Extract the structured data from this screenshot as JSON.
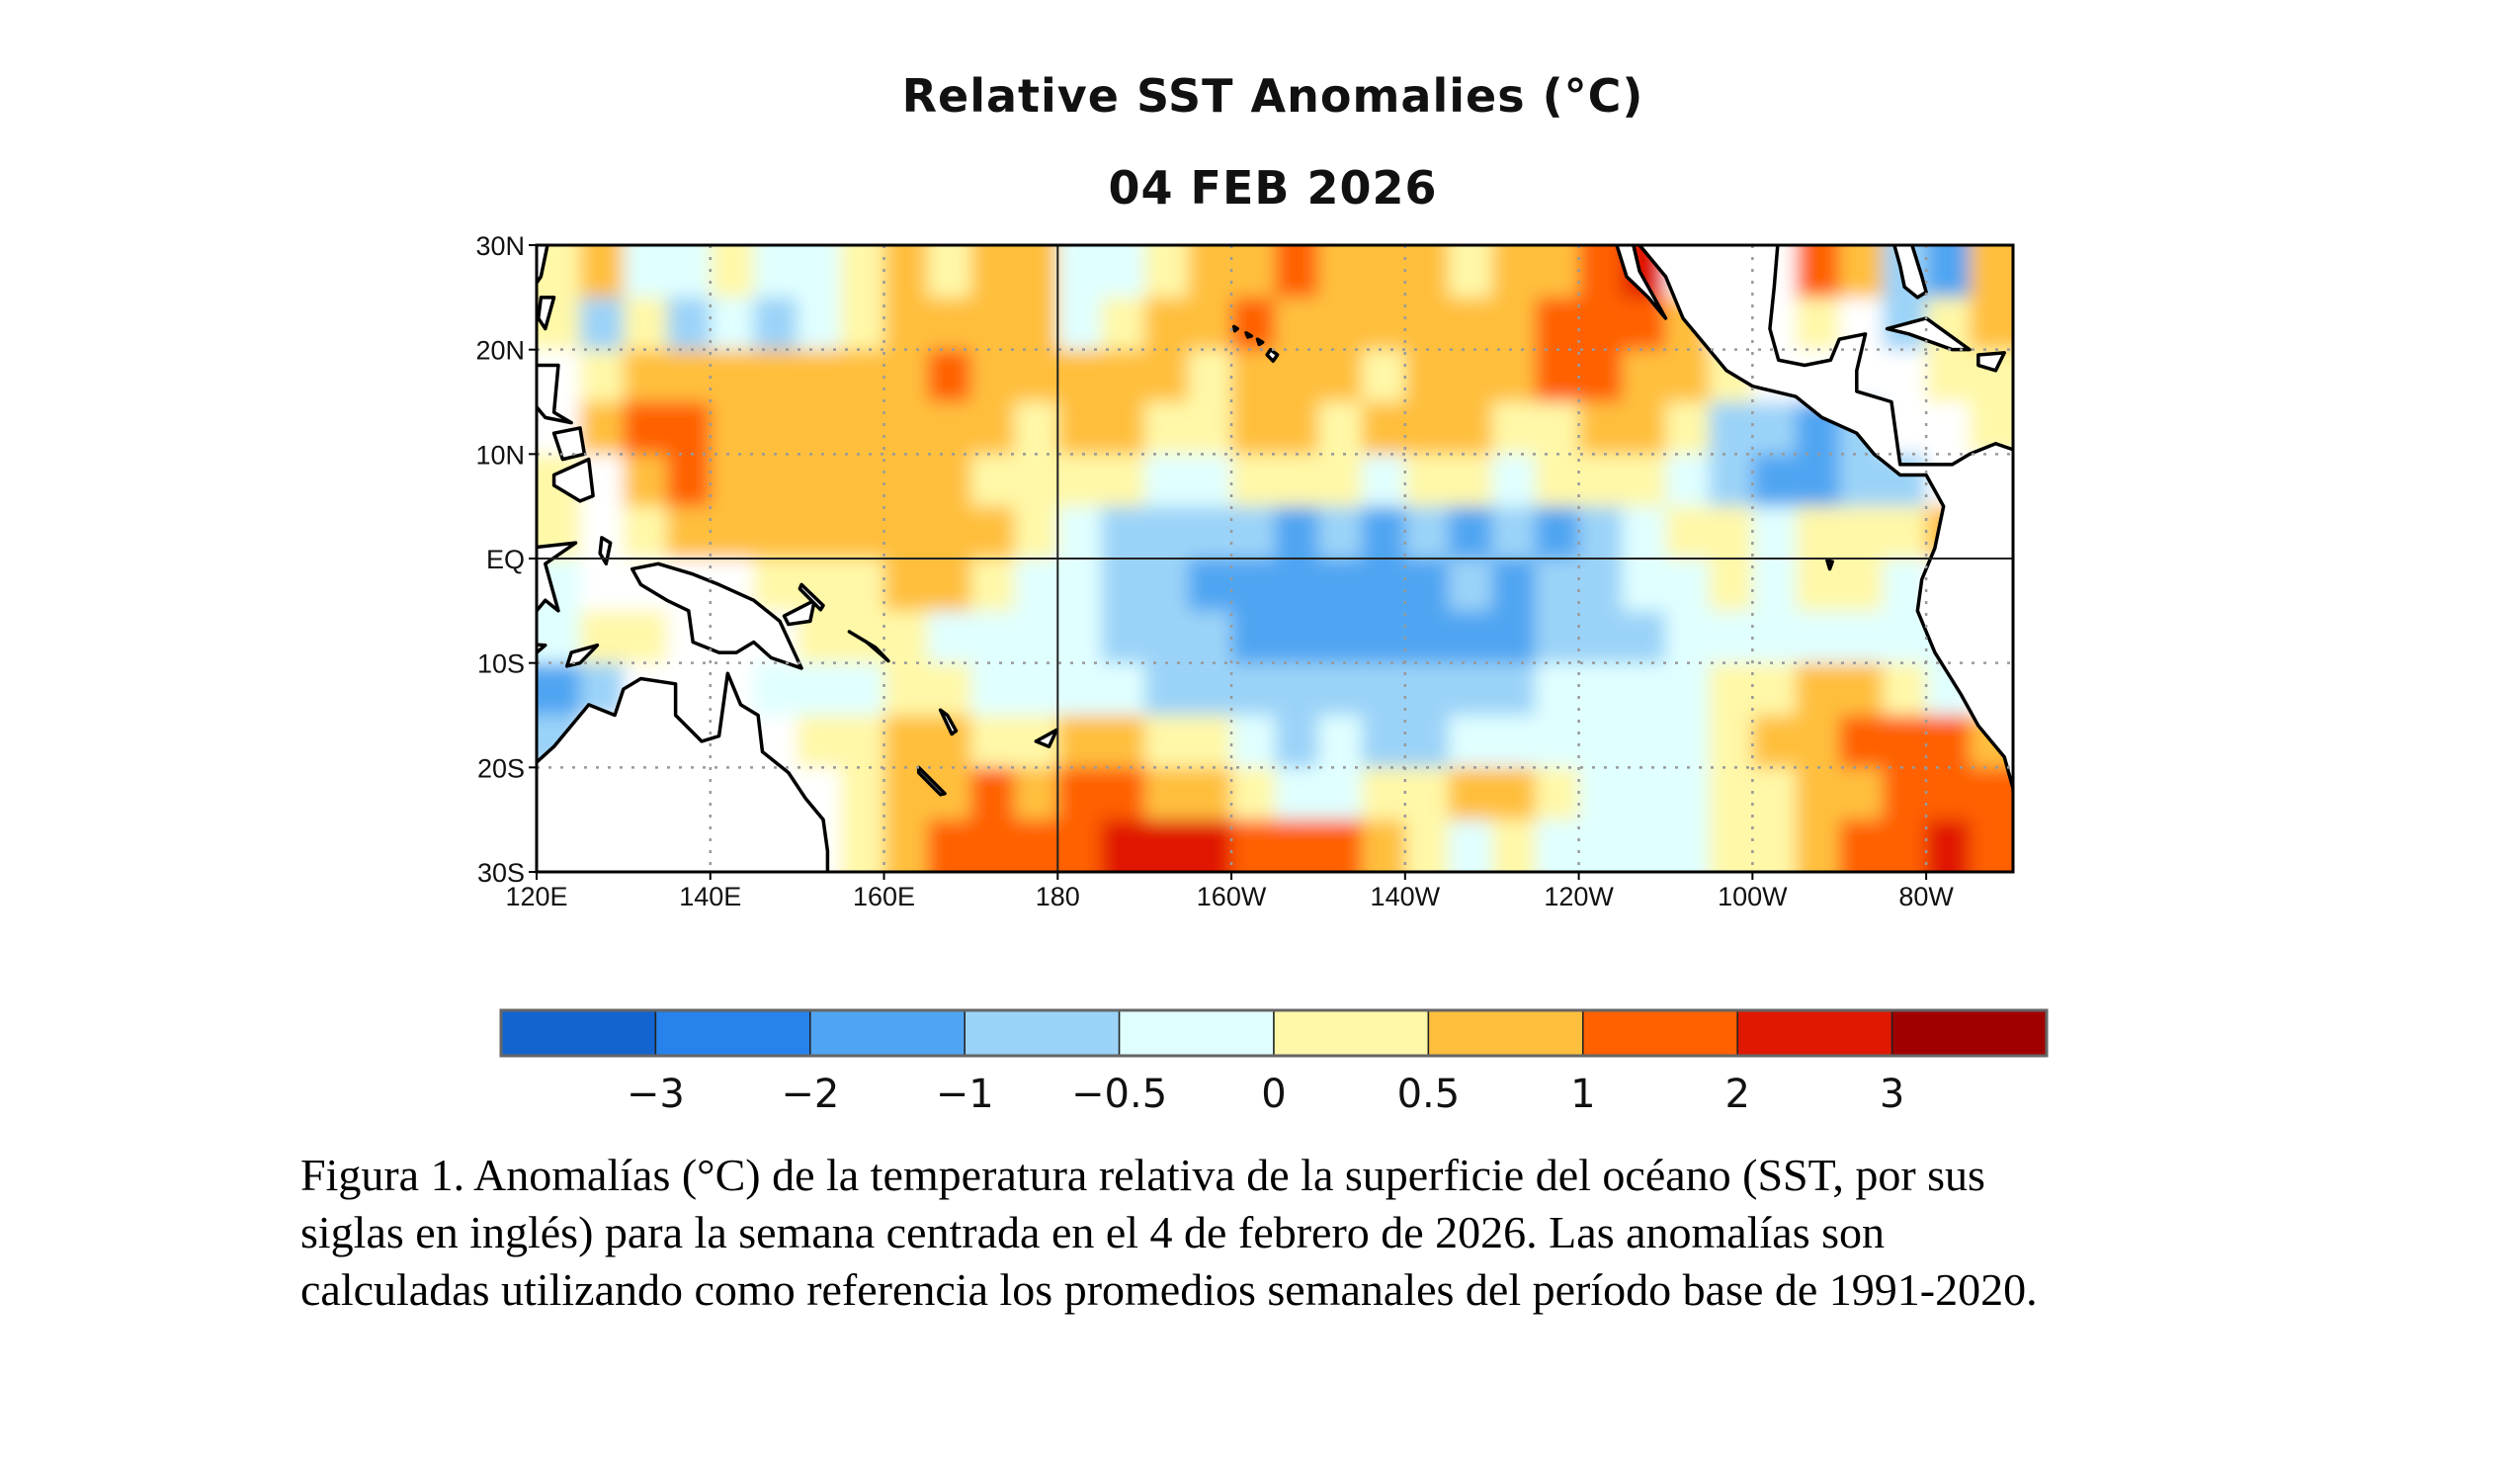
{
  "chart_data": {
    "type": "heatmap",
    "title": "Relative SST Anomalies (°C)",
    "subtitle": "04 FEB 2026",
    "xlabel": "",
    "ylabel": "",
    "x_range_deg_east": [
      120,
      290
    ],
    "y_range_deg_north": [
      -30,
      30
    ],
    "x_tick_labels": [
      "120E",
      "140E",
      "160E",
      "180",
      "160W",
      "140W",
      "120W",
      "100W",
      "80W"
    ],
    "y_tick_labels": [
      "30N",
      "20N",
      "10N",
      "EQ",
      "10S",
      "20S",
      "30S"
    ],
    "grid": "dotted",
    "cell_size_deg": 5,
    "grid_note": "rows from 30N southward, columns from 120E eastward; digit = colorbar class index (0..9), L = land",
    "anomaly_classes": [
      "56445445 6566445667 666566 78LLL76326",
      "535343 456666 456676 666667 776LL5L356",
      "L56666 666766 666566 656667 7665LLLL55",
      "L67766 666665 665566 566655 6653323LL5",
      "5L6766 666655 554455 545545 55432233LL",
      "5L5666 666665 433332 323232 345545556L",
      "4LLLL5 556654 433222 222323 34454554LL",
      "455LLL 555444 433322 222223 334444444L",
      "23LLL4 445544 443333 333334 444556654L",
      "3LLLLL 556655 665543 433444 4445667776",
      "LLLLLL L56676 776654 455665 4445566777",
      "LLLLLL L56777 788877 765454 4445567787"
    ],
    "colorbar": {
      "labels": [
        "−3",
        "−2",
        "−1",
        "−0.5",
        "0",
        "0.5",
        "1",
        "2",
        "3"
      ],
      "colors": [
        "#1464d0",
        "#2882ec",
        "#50a5f2",
        "#9bd3f8",
        "#e0ffff",
        "#fff8a8",
        "#ffbf3e",
        "#ff6000",
        "#e01800",
        "#a00000"
      ]
    }
  },
  "caption": {
    "lines": [
      "Figura 1. Anomalías (°C) de la temperatura relativa de la superficie del océano (SST, por sus",
      "siglas en inglés) para la semana centrada en el 4 de febrero de 2026. Las anomalías son",
      "calculadas utilizando como referencia los promedios semanales del período base de 1991-2020."
    ]
  }
}
